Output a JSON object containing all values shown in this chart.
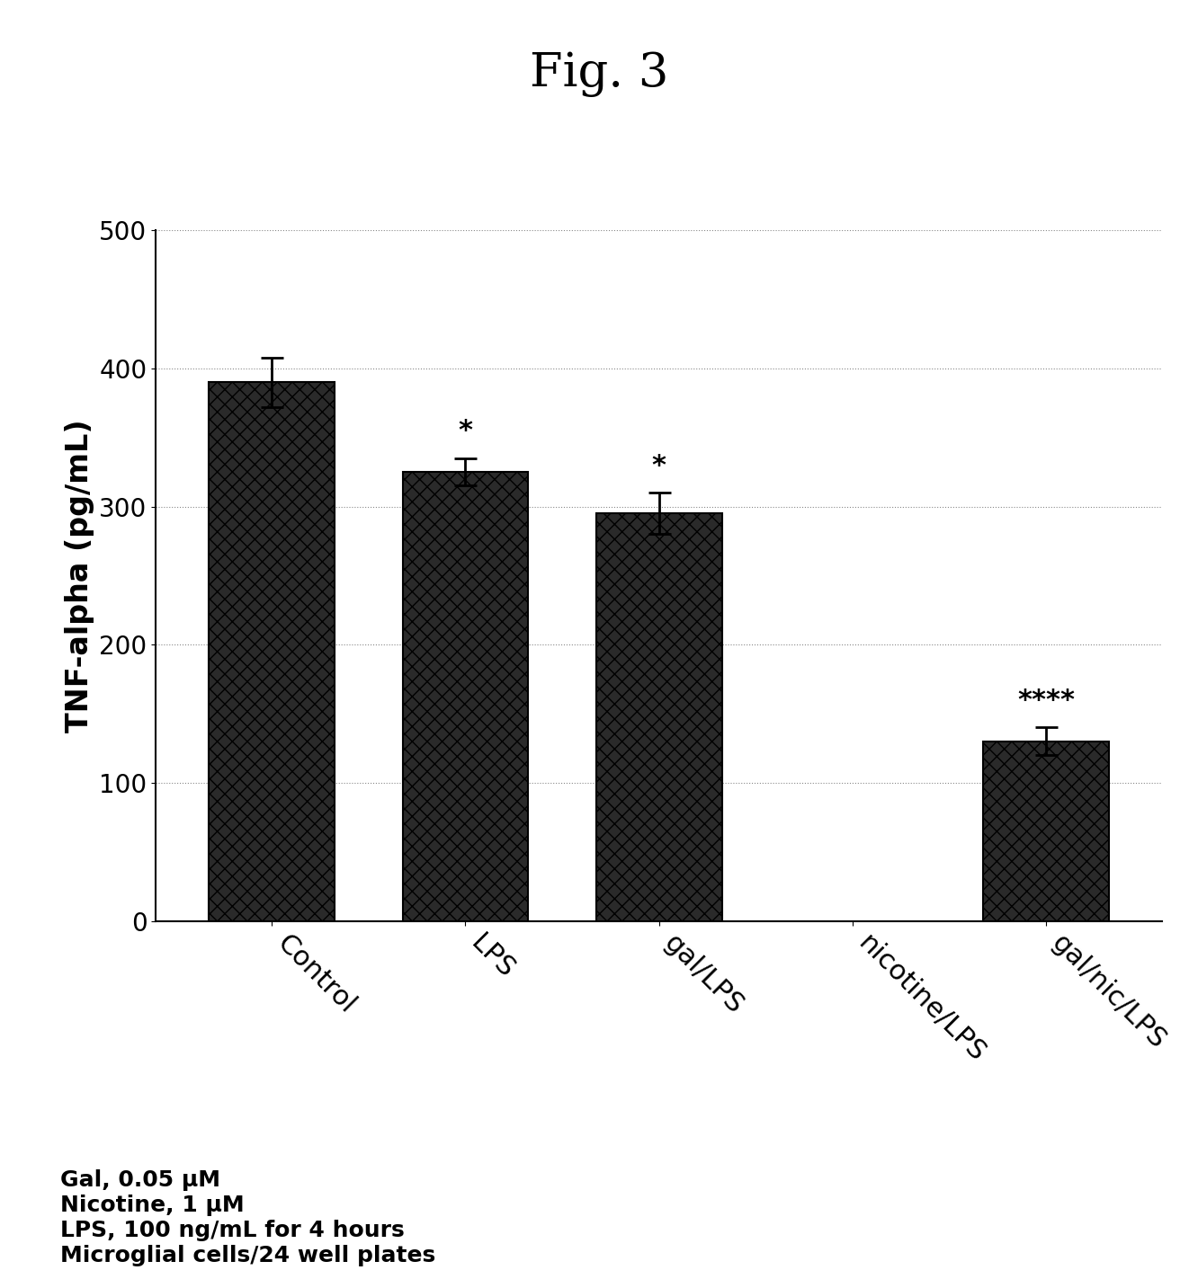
{
  "title": "Fig. 3",
  "title_fontsize": 38,
  "title_fontfamily": "serif",
  "categories": [
    "Control",
    "LPS",
    "gal/LPS",
    "nicotine/LPS",
    "gal/nic/LPS"
  ],
  "bar_positions": [
    0,
    1,
    2,
    4
  ],
  "bar_labels_idx": [
    0,
    1,
    2,
    3,
    4
  ],
  "values": [
    390,
    325,
    295,
    130
  ],
  "errors": [
    18,
    10,
    15,
    10
  ],
  "significance": [
    "",
    "*",
    "*",
    "****"
  ],
  "sig_bar_idx": [
    1,
    2,
    3
  ],
  "ylabel": "TNF-alpha (pg/mL)",
  "ylabel_fontsize": 24,
  "ylim": [
    0,
    500
  ],
  "yticks": [
    0,
    100,
    200,
    300,
    400,
    500
  ],
  "bar_color": "#2a2a2a",
  "bar_edgecolor": "#000000",
  "bar_width": 0.65,
  "annotation_fontsize": 22,
  "tick_fontsize": 20,
  "xtick_fontsize": 22,
  "xlabel_rotation": -45,
  "footnote_lines": [
    "Gal, 0.05 μM",
    "Nicotine, 1 μM",
    "LPS, 100 ng/mL for 4 hours",
    "Microglial cells/24 well plates"
  ],
  "footnote_fontsize": 18,
  "background_color": "#ffffff",
  "grid_color": "#888888",
  "grid_linestyle": "dotted",
  "figure_width": 13.32,
  "figure_height": 14.23,
  "hatch_pattern": "xx",
  "all_xtick_positions": [
    0,
    1,
    2,
    3,
    4
  ],
  "all_xtick_labels": [
    "Control",
    "LPS",
    "gal/LPS",
    "nicotine/LPS",
    "gal/nic/LPS"
  ]
}
